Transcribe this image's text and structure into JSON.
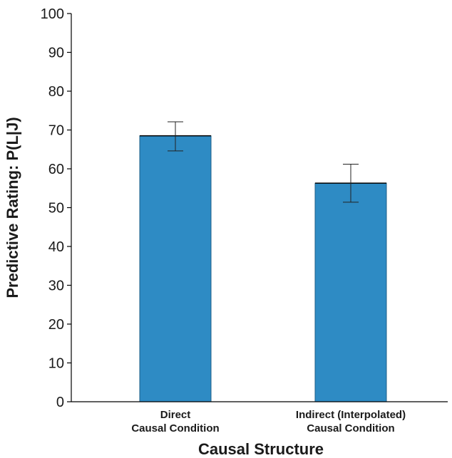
{
  "chart_data": {
    "type": "bar",
    "categories": [
      [
        "Direct",
        "Causal Condition"
      ],
      [
        "Indirect (Interpolated)",
        "Causal Condition"
      ]
    ],
    "values": [
      68.5,
      56.3
    ],
    "error_bars": [
      {
        "low": 64.6,
        "high": 72.1
      },
      {
        "low": 51.4,
        "high": 61.2
      }
    ],
    "xlabel": "Causal Structure",
    "ylabel": "Predictive Rating: P(L|J)",
    "ylim": [
      0,
      100
    ],
    "yticks": [
      0,
      10,
      20,
      30,
      40,
      50,
      60,
      70,
      80,
      90,
      100
    ],
    "bar_color": "#2e8bc4",
    "grid": false,
    "legend": "none"
  }
}
